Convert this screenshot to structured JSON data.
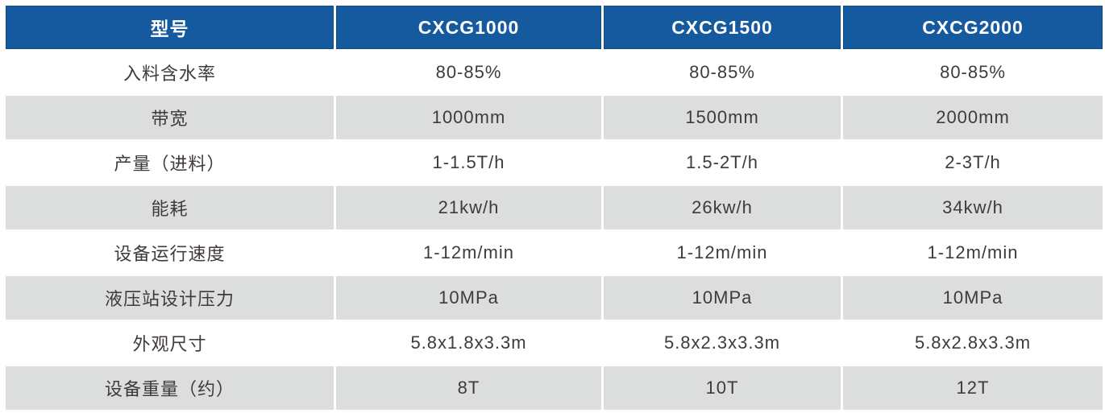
{
  "table": {
    "columns": [
      "型号",
      "CXCG1000",
      "CXCG1500",
      "CXCG2000"
    ],
    "rows": [
      {
        "label": "入料含水率",
        "values": [
          "80-85%",
          "80-85%",
          "80-85%"
        ]
      },
      {
        "label": "带宽",
        "values": [
          "1000mm",
          "1500mm",
          "2000mm"
        ]
      },
      {
        "label": "产量（进料）",
        "values": [
          "1-1.5T/h",
          "1.5-2T/h",
          "2-3T/h"
        ]
      },
      {
        "label": "能耗",
        "values": [
          "21kw/h",
          "26kw/h",
          "34kw/h"
        ]
      },
      {
        "label": "设备运行速度",
        "values": [
          "1-12m/min",
          "1-12m/min",
          "1-12m/min"
        ]
      },
      {
        "label": "液压站设计压力",
        "values": [
          "10MPa",
          "10MPa",
          "10MPa"
        ]
      },
      {
        "label": "外观尺寸",
        "values": [
          "5.8x1.8x3.3m",
          "5.8x2.3x3.3m",
          "5.8x2.8x3.3m"
        ]
      },
      {
        "label": "设备重量（约）",
        "values": [
          "8T",
          "10T",
          "12T"
        ]
      }
    ]
  },
  "colors": {
    "header_bg": "#15599f",
    "header_border": "#114a80",
    "header_text": "#ffffff",
    "row_alt_bg": "#dcdddd",
    "body_text": "#403a3a"
  }
}
